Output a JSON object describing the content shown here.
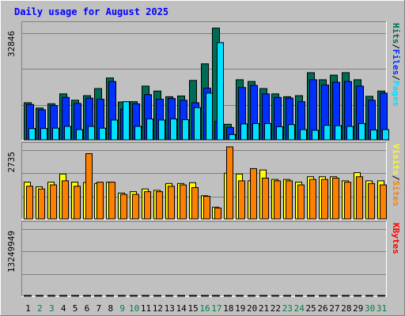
{
  "title": "Daily usage for August 2025",
  "colors": {
    "background": "#c0c0c0",
    "hits": "#006b54",
    "files": "#0030ff",
    "pages": "#00e0ff",
    "visits": "#ffff00",
    "sites": "#ff8000",
    "kbytes": "#ff0000",
    "title_text": "#0000ff",
    "weekend_label": "#008040",
    "weekday_label": "#000000"
  },
  "chart_data": [
    {
      "type": "bar",
      "panel": "hits-files-pages",
      "ymax_label": "32846",
      "ylim": [
        0,
        32846
      ],
      "grid": true,
      "legend_placement": "right",
      "legend": [
        "Pages",
        "Files",
        "Hits"
      ],
      "legend_separator": "/",
      "categories": [
        "1",
        "2",
        "3",
        "4",
        "5",
        "6",
        "7",
        "8",
        "9",
        "10",
        "11",
        "12",
        "13",
        "14",
        "15",
        "16",
        "17",
        "18",
        "19",
        "20",
        "21",
        "22",
        "23",
        "24",
        "25",
        "26",
        "27",
        "28",
        "29",
        "30",
        "31"
      ],
      "series": [
        {
          "name": "Hits",
          "values": [
            10500,
            9000,
            10200,
            13000,
            11200,
            12500,
            14500,
            17500,
            10700,
            10800,
            15200,
            13800,
            12200,
            12400,
            16800,
            21500,
            31600,
            4400,
            17000,
            16500,
            14500,
            13000,
            12200,
            12500,
            19000,
            17000,
            18300,
            19000,
            17000,
            12300,
            13800
          ]
        },
        {
          "name": "Files",
          "values": [
            10000,
            8500,
            9700,
            12000,
            10300,
            11800,
            11500,
            16500,
            8700,
            10200,
            12800,
            11500,
            11700,
            11200,
            10500,
            14600,
            5200,
            3500,
            14800,
            15400,
            13000,
            12000,
            11800,
            10800,
            17000,
            15500,
            16300,
            16500,
            15200,
            11200,
            13200
          ]
        },
        {
          "name": "Pages",
          "values": [
            3200,
            3200,
            3300,
            3800,
            2900,
            3800,
            3300,
            5600,
            10800,
            3800,
            5900,
            5600,
            5900,
            5700,
            9100,
            13200,
            27500,
            1500,
            4500,
            4600,
            4600,
            3700,
            4300,
            2900,
            2700,
            4100,
            4000,
            3800,
            4600,
            2800,
            2900
          ]
        }
      ]
    },
    {
      "type": "bar",
      "panel": "visits-sites",
      "ymax_label": "2735",
      "ylim": [
        0,
        2735
      ],
      "grid": true,
      "legend_placement": "right",
      "legend": [
        "Sites",
        "Visits"
      ],
      "legend_separator": "/",
      "categories": [
        "1",
        "2",
        "3",
        "4",
        "5",
        "6",
        "7",
        "8",
        "9",
        "10",
        "11",
        "12",
        "13",
        "14",
        "15",
        "16",
        "17",
        "18",
        "19",
        "20",
        "21",
        "22",
        "23",
        "24",
        "25",
        "26",
        "27",
        "28",
        "29",
        "30",
        "31"
      ],
      "series": [
        {
          "name": "Visits",
          "values": [
            1350,
            1180,
            1350,
            1650,
            1350,
            1340,
            1300,
            1350,
            950,
            1000,
            1100,
            1050,
            1300,
            1300,
            1330,
            850,
            430,
            1680,
            1650,
            1400,
            1800,
            1450,
            1450,
            1350,
            1550,
            1550,
            1550,
            1400,
            1700,
            1400,
            1400
          ]
        },
        {
          "name": "Sites",
          "values": [
            1200,
            1100,
            1250,
            1400,
            1200,
            2400,
            1350,
            1350,
            900,
            900,
            1000,
            1000,
            1200,
            1250,
            1150,
            830,
            400,
            2650,
            1400,
            1850,
            1500,
            1400,
            1400,
            1250,
            1450,
            1450,
            1500,
            1350,
            1550,
            1300,
            1250
          ]
        }
      ]
    },
    {
      "type": "bar",
      "panel": "kbytes",
      "ymax_label": "13249949",
      "ylim": [
        0,
        13249949
      ],
      "grid": true,
      "legend_placement": "right",
      "legend": [
        "KBytes"
      ],
      "categories": [
        "1",
        "2",
        "3",
        "4",
        "5",
        "6",
        "7",
        "8",
        "9",
        "10",
        "11",
        "12",
        "13",
        "14",
        "15",
        "16",
        "17",
        "18",
        "19",
        "20",
        "21",
        "22",
        "23",
        "24",
        "25",
        "26",
        "27",
        "28",
        "29",
        "30",
        "31"
      ],
      "series": [
        {
          "name": "KBytes",
          "values": [
            6900,
            6100,
            7300,
            11100,
            8800,
            9000,
            9900,
            8800,
            6800,
            8400,
            11700,
            8800,
            7900,
            9600,
            10100,
            5300,
            3400,
            10600,
            12900,
            9700,
            10900,
            10900,
            9200,
            11700,
            17800,
            15100,
            17300,
            16600,
            16300,
            9300,
            14400
          ]
        }
      ]
    }
  ],
  "xaxis": {
    "labels": [
      "1",
      "2",
      "3",
      "4",
      "5",
      "6",
      "7",
      "8",
      "9",
      "10",
      "11",
      "12",
      "13",
      "14",
      "15",
      "16",
      "17",
      "18",
      "19",
      "20",
      "21",
      "22",
      "23",
      "24",
      "25",
      "26",
      "27",
      "28",
      "29",
      "30",
      "31"
    ],
    "weekend_days": [
      "2",
      "3",
      "9",
      "10",
      "16",
      "17",
      "23",
      "24",
      "30",
      "31"
    ]
  }
}
